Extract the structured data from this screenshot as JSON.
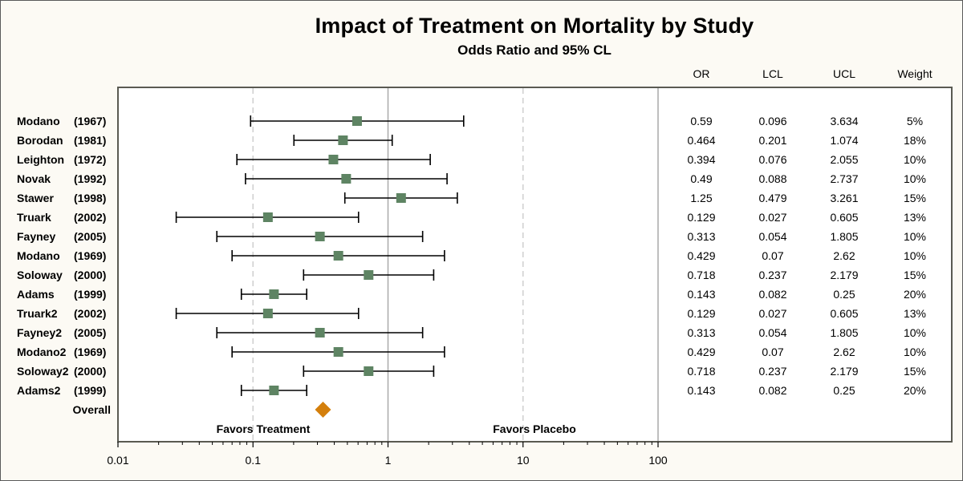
{
  "chart_data": {
    "type": "forest",
    "title": "Impact of Treatment on Mortality by Study",
    "subtitle": "Odds Ratio and 95% CL",
    "x_axis": {
      "scale": "log",
      "range": [
        0.01,
        100
      ],
      "tick_labels": [
        "0.01",
        "0.1",
        "1",
        "10",
        "100"
      ]
    },
    "column_headers": [
      "OR",
      "LCL",
      "UCL",
      "Weight"
    ],
    "studies": [
      {
        "name": "Modano",
        "year": "(1967)",
        "or": 0.59,
        "lcl": 0.096,
        "ucl": 3.634,
        "or_text": "0.59",
        "lcl_text": "0.096",
        "ucl_text": "3.634",
        "weight_text": "5%"
      },
      {
        "name": "Borodan",
        "year": "(1981)",
        "or": 0.464,
        "lcl": 0.201,
        "ucl": 1.074,
        "or_text": "0.464",
        "lcl_text": "0.201",
        "ucl_text": "1.074",
        "weight_text": "18%"
      },
      {
        "name": "Leighton",
        "year": "(1972)",
        "or": 0.394,
        "lcl": 0.076,
        "ucl": 2.055,
        "or_text": "0.394",
        "lcl_text": "0.076",
        "ucl_text": "2.055",
        "weight_text": "10%"
      },
      {
        "name": "Novak",
        "year": "(1992)",
        "or": 0.49,
        "lcl": 0.088,
        "ucl": 2.737,
        "or_text": "0.49",
        "lcl_text": "0.088",
        "ucl_text": "2.737",
        "weight_text": "10%"
      },
      {
        "name": "Stawer",
        "year": "(1998)",
        "or": 1.25,
        "lcl": 0.479,
        "ucl": 3.261,
        "or_text": "1.25",
        "lcl_text": "0.479",
        "ucl_text": "3.261",
        "weight_text": "15%"
      },
      {
        "name": "Truark",
        "year": "(2002)",
        "or": 0.129,
        "lcl": 0.027,
        "ucl": 0.605,
        "or_text": "0.129",
        "lcl_text": "0.027",
        "ucl_text": "0.605",
        "weight_text": "13%"
      },
      {
        "name": "Fayney",
        "year": "(2005)",
        "or": 0.313,
        "lcl": 0.054,
        "ucl": 1.805,
        "or_text": "0.313",
        "lcl_text": "0.054",
        "ucl_text": "1.805",
        "weight_text": "10%"
      },
      {
        "name": "Modano",
        "year": "(1969)",
        "or": 0.429,
        "lcl": 0.07,
        "ucl": 2.62,
        "or_text": "0.429",
        "lcl_text": "0.07",
        "ucl_text": "2.62",
        "weight_text": "10%"
      },
      {
        "name": "Soloway",
        "year": "(2000)",
        "or": 0.718,
        "lcl": 0.237,
        "ucl": 2.179,
        "or_text": "0.718",
        "lcl_text": "0.237",
        "ucl_text": "2.179",
        "weight_text": "15%"
      },
      {
        "name": "Adams",
        "year": "(1999)",
        "or": 0.143,
        "lcl": 0.082,
        "ucl": 0.25,
        "or_text": "0.143",
        "lcl_text": "0.082",
        "ucl_text": "0.25",
        "weight_text": "20%"
      },
      {
        "name": "Truark2",
        "year": "(2002)",
        "or": 0.129,
        "lcl": 0.027,
        "ucl": 0.605,
        "or_text": "0.129",
        "lcl_text": "0.027",
        "ucl_text": "0.605",
        "weight_text": "13%"
      },
      {
        "name": "Fayney2",
        "year": "(2005)",
        "or": 0.313,
        "lcl": 0.054,
        "ucl": 1.805,
        "or_text": "0.313",
        "lcl_text": "0.054",
        "ucl_text": "1.805",
        "weight_text": "10%"
      },
      {
        "name": "Modano2",
        "year": "(1969)",
        "or": 0.429,
        "lcl": 0.07,
        "ucl": 2.62,
        "or_text": "0.429",
        "lcl_text": "0.07",
        "ucl_text": "2.62",
        "weight_text": "10%"
      },
      {
        "name": "Soloway2",
        "year": "(2000)",
        "or": 0.718,
        "lcl": 0.237,
        "ucl": 2.179,
        "or_text": "0.718",
        "lcl_text": "0.237",
        "ucl_text": "2.179",
        "weight_text": "15%"
      },
      {
        "name": "Adams2",
        "year": "(1999)",
        "or": 0.143,
        "lcl": 0.082,
        "ucl": 0.25,
        "or_text": "0.143",
        "lcl_text": "0.082",
        "ucl_text": "0.25",
        "weight_text": "20%"
      }
    ],
    "overall": {
      "label": "Overall",
      "or": 0.33
    },
    "annotations": {
      "left": "Favors Treatment",
      "right": "Favors Placebo"
    },
    "reference_lines": {
      "solid": [
        1,
        100
      ],
      "dashed": [
        0.1,
        10
      ]
    },
    "colors": {
      "marker": "#5e8463",
      "overall_marker": "#d47f0c",
      "ci_line": "#000000",
      "ref_solid": "#a9a9a9",
      "ref_dashed": "#cfcfcf",
      "frame": "#5a5a52",
      "panel": "#ffffff",
      "background": "#fcfaf4"
    }
  }
}
